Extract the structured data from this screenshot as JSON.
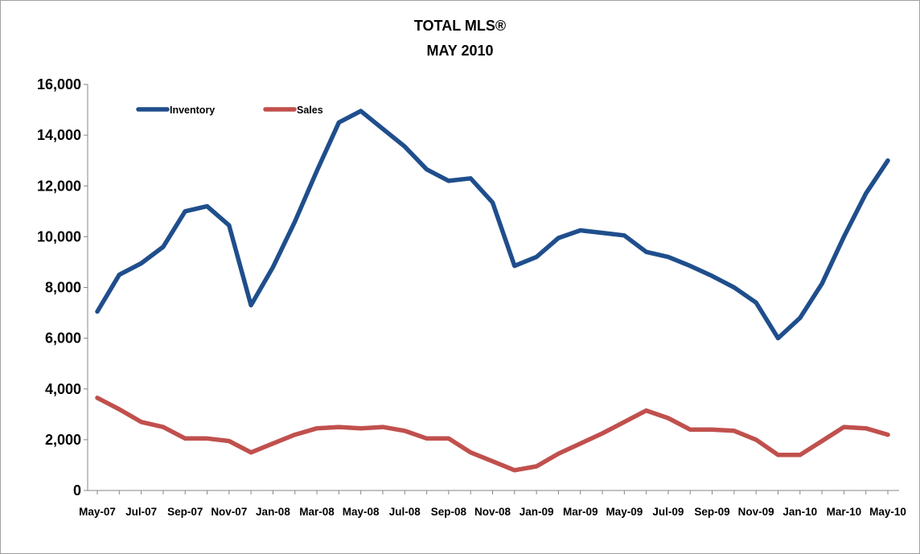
{
  "chart_data": {
    "type": "line",
    "title": [
      "TOTAL MLS®",
      "MAY 2010"
    ],
    "xlabel": "",
    "ylabel": "",
    "ylim": [
      0,
      16000
    ],
    "yticks": [
      0,
      2000,
      4000,
      6000,
      8000,
      10000,
      12000,
      14000,
      16000
    ],
    "ytick_labels": [
      "0",
      "2,000",
      "4,000",
      "6,000",
      "8,000",
      "10,000",
      "12,000",
      "14,000",
      "16,000"
    ],
    "grid": false,
    "legend_position": "top-left",
    "x": [
      "May-07",
      "Jun-07",
      "Jul-07",
      "Aug-07",
      "Sep-07",
      "Oct-07",
      "Nov-07",
      "Dec-07",
      "Jan-08",
      "Feb-08",
      "Mar-08",
      "Apr-08",
      "May-08",
      "Jun-08",
      "Jul-08",
      "Aug-08",
      "Sep-08",
      "Oct-08",
      "Nov-08",
      "Dec-08",
      "Jan-09",
      "Feb-09",
      "Mar-09",
      "Apr-09",
      "May-09",
      "Jun-09",
      "Jul-09",
      "Aug-09",
      "Sep-09",
      "Oct-09",
      "Nov-09",
      "Dec-09",
      "Jan-10",
      "Feb-10",
      "Mar-10",
      "Apr-10",
      "May-10"
    ],
    "xtick_labels": [
      "May-07",
      "Jul-07",
      "Sep-07",
      "Nov-07",
      "Jan-08",
      "Mar-08",
      "May-08",
      "Jul-08",
      "Sep-08",
      "Nov-08",
      "Jan-09",
      "Mar-09",
      "May-09",
      "Jul-09",
      "Sep-09",
      "Nov-09",
      "Jan-10",
      "Mar-10",
      "May-10"
    ],
    "series": [
      {
        "name": "Inventory",
        "color": "#1f4e8c",
        "values": [
          7050,
          8500,
          8950,
          9600,
          11000,
          11200,
          10450,
          7300,
          8800,
          10600,
          12600,
          14500,
          14950,
          14250,
          13550,
          12650,
          12200,
          12300,
          11350,
          8850,
          9200,
          9950,
          10250,
          10150,
          10050,
          9400,
          9200,
          8850,
          8450,
          8000,
          7400,
          6000,
          6800,
          8150,
          10000,
          11700,
          13000
        ]
      },
      {
        "name": "Sales",
        "color": "#c0504d",
        "values": [
          3650,
          3200,
          2700,
          2500,
          2050,
          2050,
          1950,
          1500,
          1850,
          2200,
          2450,
          2500,
          2450,
          2500,
          2350,
          2050,
          2050,
          1500,
          1150,
          800,
          950,
          1450,
          1850,
          2250,
          2700,
          3150,
          2850,
          2400,
          2400,
          2350,
          2000,
          1400,
          1400,
          1950,
          2500,
          2450,
          2200
        ]
      }
    ]
  }
}
